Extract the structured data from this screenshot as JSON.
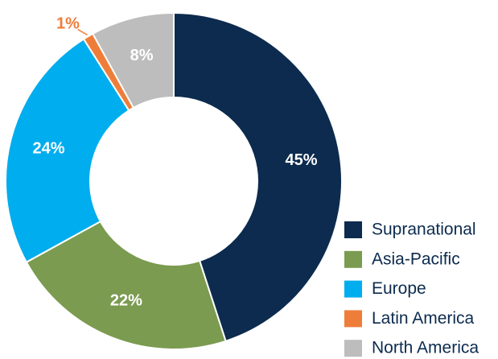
{
  "chart_data": {
    "type": "donut",
    "categories": [
      "Supranational",
      "Asia-Pacific",
      "Europe",
      "Latin America",
      "North America"
    ],
    "values": [
      45,
      22,
      24,
      1,
      8
    ],
    "value_labels": [
      "45%",
      "22%",
      "24%",
      "1%",
      "8%"
    ],
    "colors": [
      "#0c2b4e",
      "#7b9b50",
      "#00adee",
      "#ef7d3a",
      "#bdbdbd"
    ]
  }
}
